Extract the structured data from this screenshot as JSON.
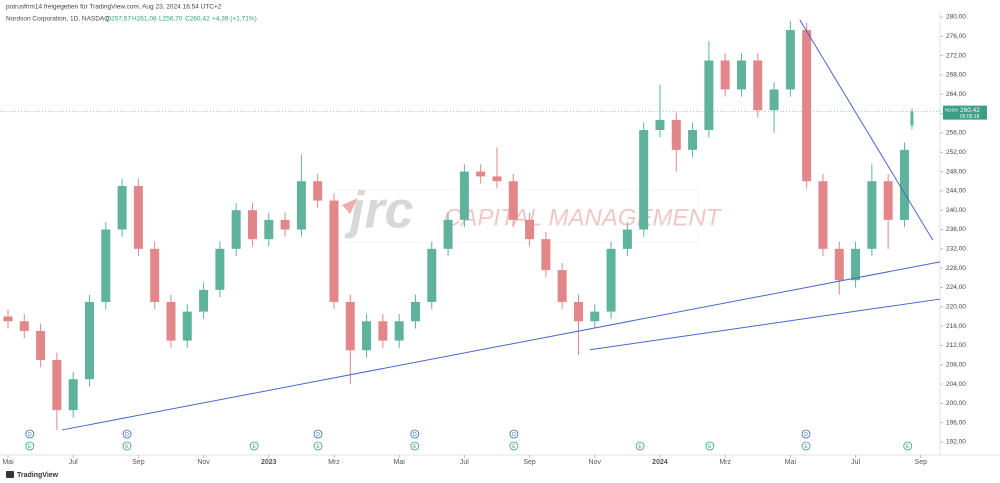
{
  "chart_data": {
    "type": "candlestick",
    "header": "potrusfrim14 freigegeben für TradingView.com, Aug 23, 2024 16:54 UTC+2",
    "title": "Nordson Corporation, 1D, NASDAQ",
    "ohlc_labels": [
      "O257,57",
      "H261,08",
      "L256,70",
      "C260,42"
    ],
    "change_label": "+4,39 (+1,71%)",
    "footer": "TradingView",
    "watermark": {
      "logo": "jrc",
      "text": "CAPITAL MANAGEMENT"
    },
    "price_tag": {
      "symbol": "NDSN",
      "price": "260,42",
      "countdown": "05:05:18"
    },
    "up_color": "#5fb39c",
    "down_color": "#e2868a",
    "x": [
      0,
      0.5,
      1,
      1.5,
      2,
      2.5,
      3,
      3.5,
      4,
      4.5,
      5,
      5.5,
      6,
      6.5,
      7,
      7.5,
      8,
      8.5,
      9,
      9.5,
      10,
      10.5,
      11,
      11.5,
      12,
      12.5,
      13,
      13.5,
      14,
      14.5,
      15,
      15.5,
      16,
      16.5,
      17,
      17.5,
      18,
      18.5,
      19,
      19.5,
      20,
      20.5,
      21,
      21.5,
      22,
      22.5,
      23,
      23.5,
      24,
      24.5,
      25,
      25.5,
      26,
      26.5,
      27,
      27.5,
      27.73
    ],
    "open": [
      218,
      217,
      215,
      209,
      198.6,
      205,
      221,
      236,
      245,
      232,
      221,
      213,
      219,
      223.5,
      232,
      240,
      234,
      238,
      236,
      246,
      242,
      221,
      211,
      217,
      213,
      217,
      221,
      232,
      238,
      248,
      247,
      246,
      238,
      234,
      227.6,
      221,
      217,
      219,
      232,
      236,
      256.6,
      258.7,
      252.5,
      256.6,
      271,
      265,
      271,
      260.7,
      265,
      277.3,
      246,
      232,
      225.5,
      232,
      246,
      238,
      257.57
    ],
    "high": [
      219.5,
      218.5,
      216.5,
      210.5,
      206.5,
      222.5,
      237.5,
      246.5,
      246.5,
      233.5,
      222.5,
      220.5,
      225,
      233.5,
      241.5,
      241.5,
      239.5,
      239.5,
      251.5,
      247.5,
      243.5,
      222.5,
      218.5,
      218.5,
      218.5,
      222.5,
      233.5,
      239.5,
      249.5,
      249.5,
      253,
      247.5,
      239.5,
      235.5,
      229.1,
      222.5,
      220.5,
      233.5,
      237.5,
      258.1,
      266,
      260.2,
      258.1,
      275,
      272.5,
      272.5,
      272.5,
      266.5,
      279.2,
      278.8,
      247.5,
      233.5,
      233.5,
      249.5,
      247.5,
      254,
      261.08
    ],
    "low": [
      215.5,
      213.5,
      207.5,
      194.5,
      197.1,
      203.5,
      219.5,
      234.5,
      230.5,
      219.5,
      211.5,
      211.5,
      217.5,
      222,
      230.5,
      232.5,
      232.5,
      234.5,
      234.5,
      240.5,
      219.5,
      204,
      209.5,
      211.5,
      211.5,
      215.5,
      219.5,
      230.5,
      236.5,
      245.5,
      244.5,
      236.5,
      232.5,
      226.1,
      219.5,
      210,
      215.5,
      217.5,
      230.5,
      234.5,
      255.1,
      248,
      251,
      255.1,
      263.5,
      263.5,
      259.2,
      256,
      263.5,
      244.5,
      230.5,
      222.5,
      224,
      230.5,
      232,
      236.5,
      256.7
    ],
    "close": [
      217,
      215,
      209,
      198.6,
      205,
      221,
      236,
      245,
      232,
      221,
      213,
      219,
      223.5,
      232,
      240,
      234,
      238,
      236,
      246,
      242,
      221,
      211,
      217,
      213,
      217,
      221,
      232,
      238,
      248,
      247,
      246,
      238,
      234,
      227.6,
      221,
      217,
      219,
      232,
      236,
      256.6,
      258.7,
      252.5,
      256.6,
      271,
      265,
      271,
      260.7,
      265,
      277.3,
      246,
      232,
      225.5,
      232,
      246,
      238,
      252.5,
      260.42
    ],
    "xlim": [
      -0.245,
      28.59
    ],
    "ylim": [
      189.31,
      281.04
    ],
    "xticks": [
      {
        "value": 0,
        "label": "Mai"
      },
      {
        "value": 2,
        "label": "Jul"
      },
      {
        "value": 4,
        "label": "Sep"
      },
      {
        "value": 6,
        "label": "Nov"
      },
      {
        "value": 8,
        "label": "2023"
      },
      {
        "value": 10,
        "label": "Mrz"
      },
      {
        "value": 12,
        "label": "Mai"
      },
      {
        "value": 14,
        "label": "Jul"
      },
      {
        "value": 16,
        "label": "Sep"
      },
      {
        "value": 18,
        "label": "Nov"
      },
      {
        "value": 20,
        "label": "2024"
      },
      {
        "value": 22,
        "label": "Mrz"
      },
      {
        "value": 24,
        "label": "Mai"
      },
      {
        "value": 26,
        "label": "Jul"
      },
      {
        "value": 28,
        "label": "Sep"
      }
    ],
    "yticks": [
      {
        "value": 192,
        "label": "192,00"
      },
      {
        "value": 196,
        "label": "196,00"
      },
      {
        "value": 200,
        "label": "200,00"
      },
      {
        "value": 204,
        "label": "204,00"
      },
      {
        "value": 208,
        "label": "208,00"
      },
      {
        "value": 212,
        "label": "212,00"
      },
      {
        "value": 216,
        "label": "216,00"
      },
      {
        "value": 220,
        "label": "220,00"
      },
      {
        "value": 224,
        "label": "224,00"
      },
      {
        "value": 228,
        "label": "228,00"
      },
      {
        "value": 232,
        "label": "232,00"
      },
      {
        "value": 236,
        "label": "236,00"
      },
      {
        "value": 240,
        "label": "240,00"
      },
      {
        "value": 244,
        "label": "244,00"
      },
      {
        "value": 248,
        "label": "248,00"
      },
      {
        "value": 252,
        "label": "252,00"
      },
      {
        "value": 256,
        "label": "256,00"
      },
      {
        "value": 260,
        "label": "260,00"
      },
      {
        "value": 264,
        "label": "264,00"
      },
      {
        "value": 268,
        "label": "268,00"
      },
      {
        "value": 272,
        "label": "272,00"
      },
      {
        "value": 276,
        "label": "276,00"
      },
      {
        "value": 280,
        "label": "280,00"
      }
    ],
    "trendlines": [
      {
        "color": "#4a67c9",
        "x": [
          1.66,
          28.59
        ],
        "y": [
          194.5,
          229.3
        ]
      },
      {
        "color": "#4a67c9",
        "x": [
          17.85,
          28.59
        ],
        "y": [
          211.1,
          221.6
        ]
      },
      {
        "color": "#4a67c9",
        "x": [
          24.29,
          28.37
        ],
        "y": [
          279.4,
          233.8
        ]
      }
    ],
    "dividends": {
      "label": "D",
      "x": [
        0.67,
        3.65,
        9.51,
        12.48,
        15.52,
        24.48
      ]
    },
    "earnings": {
      "label": "E",
      "x": [
        0.67,
        3.65,
        7.55,
        9.51,
        12.48,
        15.52,
        19.39,
        21.53,
        24.48,
        27.6
      ]
    }
  }
}
